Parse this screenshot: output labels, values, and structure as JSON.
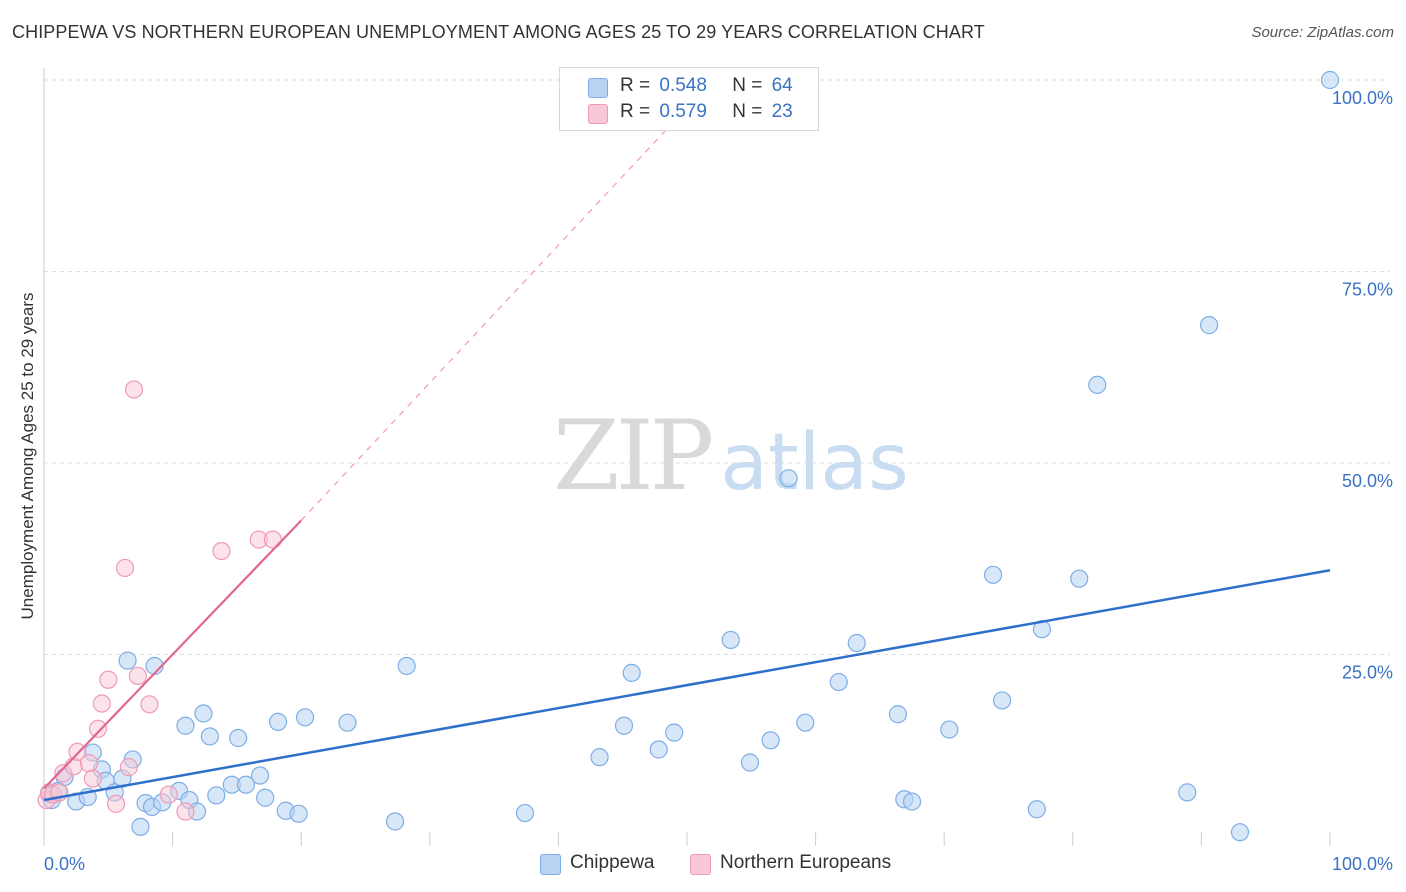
{
  "header": {
    "title": "CHIPPEWA VS NORTHERN EUROPEAN UNEMPLOYMENT AMONG AGES 25 TO 29 YEARS CORRELATION CHART",
    "source": "Source: ZipAtlas.com"
  },
  "watermark": {
    "zip": "ZIP",
    "atlas": "atlas"
  },
  "legend_top": {
    "rows": [
      {
        "r_label": "R =",
        "r_value": "0.548",
        "n_label": "N =",
        "n_value": "64"
      },
      {
        "r_label": "R =",
        "r_value": "0.579",
        "n_label": "N =",
        "n_value": "23"
      }
    ]
  },
  "colors": {
    "chippewa_fill": "#b8d3f2",
    "chippewa_stroke": "#7eaee6",
    "chippewa_line": "#2f6fcc",
    "northern_fill": "#f9c8d6",
    "northern_stroke": "#f09ab5",
    "northern_line": "#e06890",
    "tick_label": "#3a72c4",
    "grid": "#dddddd"
  },
  "chart_data": {
    "type": "scatter",
    "title": "CHIPPEWA VS NORTHERN EUROPEAN UNEMPLOYMENT AMONG AGES 25 TO 29 YEARS CORRELATION CHART",
    "xlabel": "",
    "ylabel": "Unemployment Among Ages 25 to 29 years",
    "xlim": [
      0,
      100
    ],
    "ylim": [
      0,
      100
    ],
    "x_tick_labels": [
      "0.0%",
      "100.0%"
    ],
    "y_tick_labels": [
      "100.0%",
      "75.0%",
      "50.0%",
      "25.0%"
    ],
    "y_ticks": [
      100,
      75,
      50,
      25
    ],
    "grid": true,
    "legend_position": "top-center",
    "series": [
      {
        "name": "Chippewa",
        "points": [
          [
            0.4,
            6.8
          ],
          [
            0.6,
            6.0
          ],
          [
            1.1,
            7.2
          ],
          [
            1.6,
            9.0
          ],
          [
            2.5,
            5.8
          ],
          [
            3.4,
            6.4
          ],
          [
            3.8,
            12.2
          ],
          [
            4.5,
            10.0
          ],
          [
            4.8,
            8.5
          ],
          [
            5.5,
            7.0
          ],
          [
            6.1,
            8.8
          ],
          [
            6.5,
            24.2
          ],
          [
            6.9,
            11.3
          ],
          [
            7.5,
            2.5
          ],
          [
            7.9,
            5.6
          ],
          [
            8.4,
            5.1
          ],
          [
            8.6,
            23.5
          ],
          [
            9.2,
            5.7
          ],
          [
            10.5,
            7.2
          ],
          [
            11.0,
            15.7
          ],
          [
            11.3,
            6.0
          ],
          [
            11.9,
            4.5
          ],
          [
            12.4,
            17.3
          ],
          [
            12.9,
            14.3
          ],
          [
            13.4,
            6.6
          ],
          [
            14.6,
            8.0
          ],
          [
            15.1,
            14.1
          ],
          [
            15.7,
            8.0
          ],
          [
            16.8,
            9.2
          ],
          [
            17.2,
            6.3
          ],
          [
            18.2,
            16.2
          ],
          [
            18.8,
            4.6
          ],
          [
            19.8,
            4.2
          ],
          [
            20.3,
            16.8
          ],
          [
            23.6,
            16.1
          ],
          [
            27.3,
            3.2
          ],
          [
            28.2,
            23.5
          ],
          [
            37.4,
            4.3
          ],
          [
            43.2,
            11.6
          ],
          [
            45.1,
            15.7
          ],
          [
            45.7,
            22.6
          ],
          [
            47.8,
            12.6
          ],
          [
            49.0,
            14.8
          ],
          [
            53.4,
            26.9
          ],
          [
            54.9,
            10.9
          ],
          [
            56.5,
            13.8
          ],
          [
            57.9,
            48.0
          ],
          [
            59.2,
            16.1
          ],
          [
            61.8,
            21.4
          ],
          [
            63.2,
            26.5
          ],
          [
            66.4,
            17.2
          ],
          [
            66.9,
            6.1
          ],
          [
            67.5,
            5.8
          ],
          [
            70.4,
            15.2
          ],
          [
            73.8,
            35.4
          ],
          [
            74.5,
            19.0
          ],
          [
            77.2,
            4.8
          ],
          [
            77.6,
            28.3
          ],
          [
            80.5,
            34.9
          ],
          [
            81.9,
            60.2
          ],
          [
            88.9,
            7.0
          ],
          [
            90.6,
            68.0
          ],
          [
            93.0,
            1.8
          ],
          [
            100.0,
            100.0
          ]
        ],
        "trend": {
          "x0": 0,
          "y0": 6.0,
          "x1": 100,
          "y1": 36.0
        }
      },
      {
        "name": "Northern Europeans",
        "points": [
          [
            0.2,
            6.0
          ],
          [
            0.4,
            7.0
          ],
          [
            0.7,
            6.7
          ],
          [
            1.2,
            7.0
          ],
          [
            1.5,
            9.5
          ],
          [
            2.3,
            10.4
          ],
          [
            2.6,
            12.3
          ],
          [
            3.5,
            10.8
          ],
          [
            3.8,
            8.8
          ],
          [
            4.2,
            15.3
          ],
          [
            4.5,
            18.6
          ],
          [
            5.0,
            21.7
          ],
          [
            5.6,
            5.5
          ],
          [
            6.3,
            36.3
          ],
          [
            6.6,
            10.3
          ],
          [
            7.0,
            59.6
          ],
          [
            7.3,
            22.2
          ],
          [
            8.2,
            18.5
          ],
          [
            9.7,
            6.7
          ],
          [
            11.0,
            4.5
          ],
          [
            13.8,
            38.5
          ],
          [
            16.7,
            40.0
          ],
          [
            17.8,
            40.0
          ]
        ],
        "trend": {
          "x0": 0,
          "y0": 7.5,
          "x1": 20,
          "y1": 42.5
        },
        "trend_extension": {
          "x0": 20,
          "y0": 42.5,
          "x1": 52,
          "y1": 100
        }
      }
    ]
  },
  "legend_bottom": {
    "items": [
      {
        "label": "Chippewa"
      },
      {
        "label": "Northern Europeans"
      }
    ]
  }
}
